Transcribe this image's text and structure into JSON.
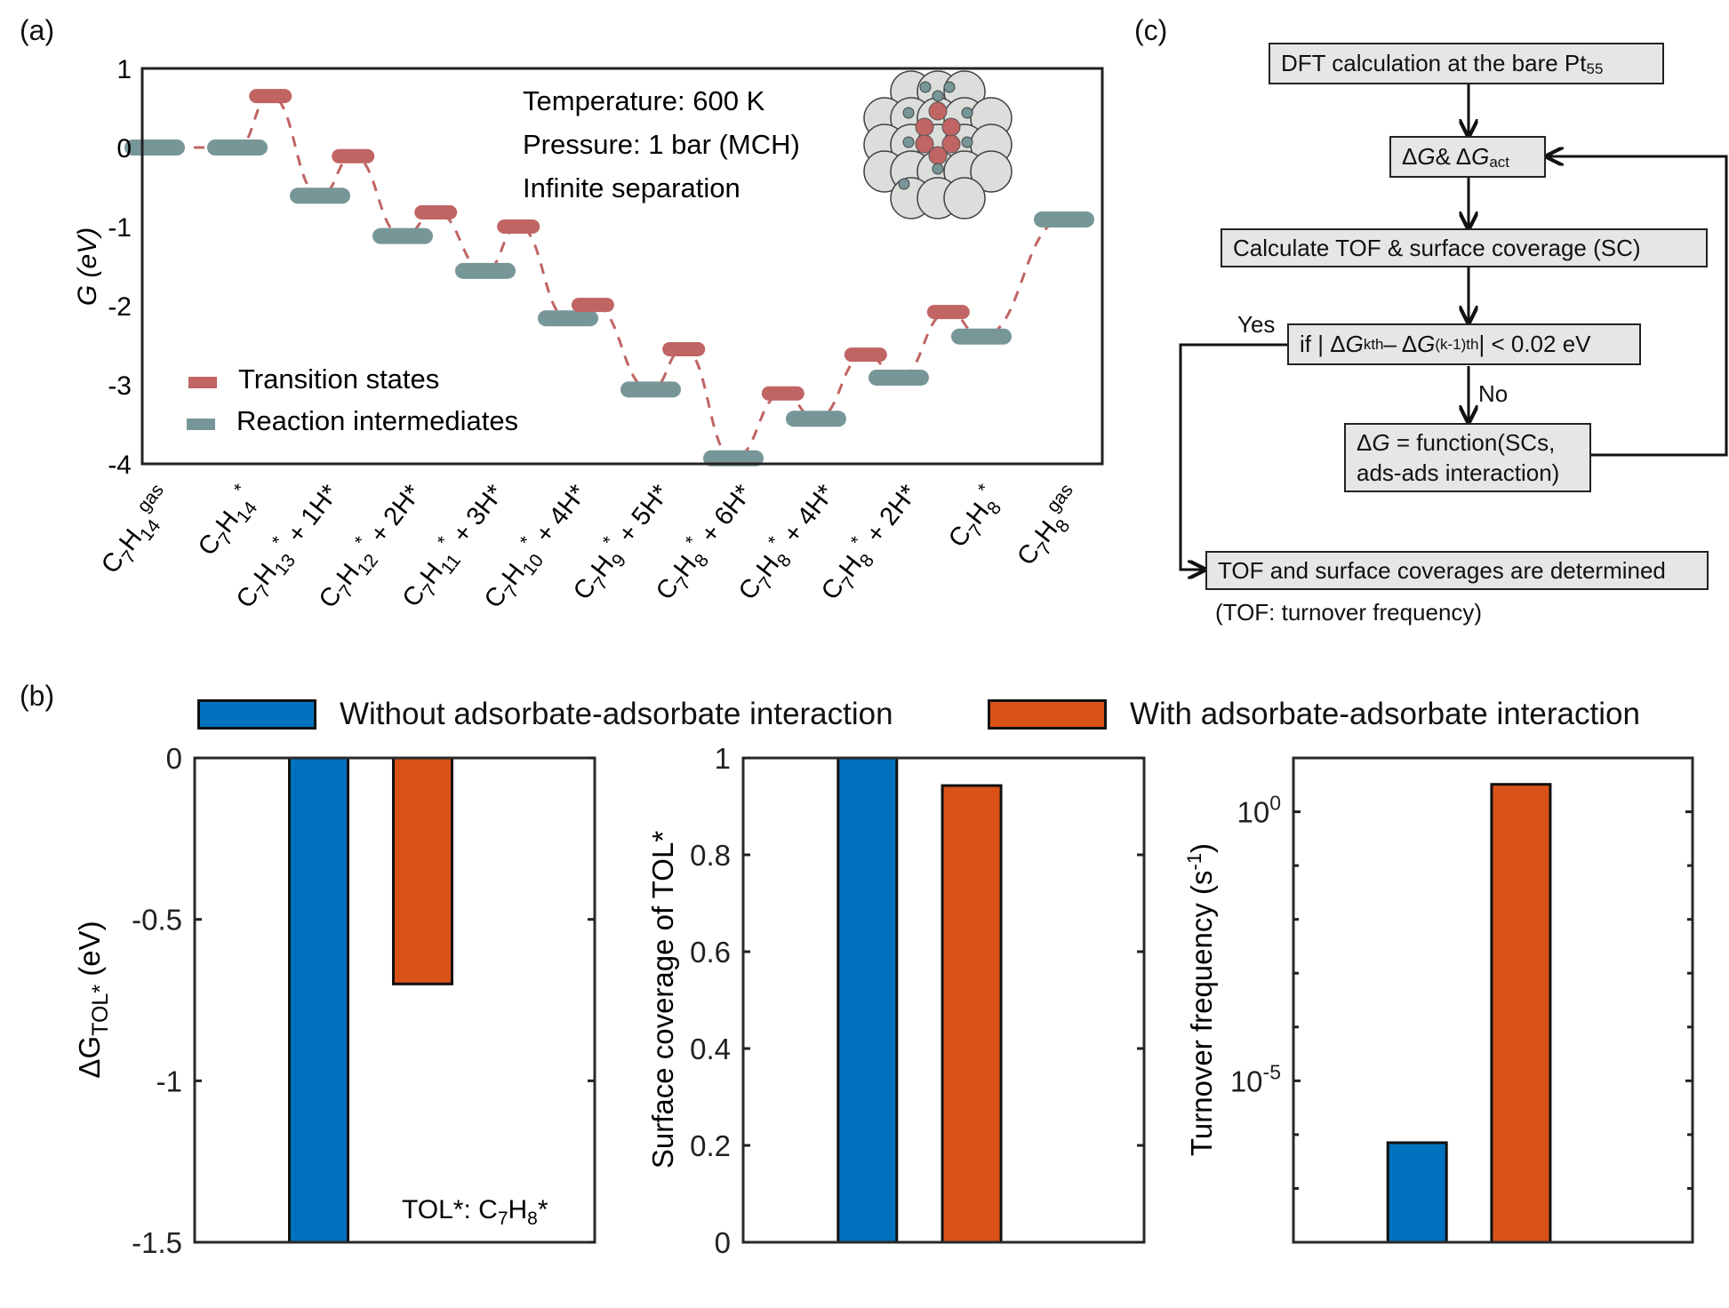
{
  "panels": {
    "a": "(a)",
    "b": "(b)",
    "c": "(c)"
  },
  "chart_data": [
    {
      "id": "energy-diagram",
      "type": "line",
      "title": "",
      "ylabel": "G (eV)",
      "ylim": [
        -4,
        1
      ],
      "yticks": [
        1,
        0,
        -1,
        -2,
        -3,
        -4
      ],
      "annotations": [
        "Temperature: 600 K",
        "Pressure: 1 bar (MCH)",
        "Infinite separation"
      ],
      "legend": {
        "placement": "bottom-left",
        "entries": [
          {
            "name": "Transition states",
            "color": "#c06464"
          },
          {
            "name": "Reaction intermediates",
            "color": "#779698"
          }
        ]
      },
      "inset": "Pt55 cluster with adsorbed toluene and H atoms",
      "intermediates": [
        {
          "label": "C7H14 gas",
          "main": "C",
          "s1": "7",
          "m2": "H",
          "sub": "14",
          "sup": "gas",
          "extra": "",
          "x": 0,
          "G": 0.0
        },
        {
          "label": "C7H14*",
          "main": "C",
          "s1": "7",
          "m2": "H",
          "sub": "14",
          "sup": "*",
          "extra": "",
          "x": 1,
          "G": 0.0
        },
        {
          "label": "C7H13* + 1H*",
          "main": "C",
          "s1": "7",
          "m2": "H",
          "sub": "13",
          "sup": "*",
          "extra": " + 1H*",
          "x": 2,
          "G": -0.61
        },
        {
          "label": "C7H12* + 2H*",
          "main": "C",
          "s1": "7",
          "m2": "H",
          "sub": "12",
          "sup": "*",
          "extra": " + 2H*",
          "x": 3,
          "G": -1.12
        },
        {
          "label": "C7H11* + 3H*",
          "main": "C",
          "s1": "7",
          "m2": "H",
          "sub": "11",
          "sup": "*",
          "extra": " + 3H*",
          "x": 4,
          "G": -1.56
        },
        {
          "label": "C7H10* + 4H*",
          "main": "C",
          "s1": "7",
          "m2": "H",
          "sub": "10",
          "sup": "*",
          "extra": " + 4H*",
          "x": 5,
          "G": -2.16
        },
        {
          "label": "C7H9* + 5H*",
          "main": "C",
          "s1": "7",
          "m2": "H",
          "sub": "9",
          "sup": "*",
          "extra": " + 5H*",
          "x": 6,
          "G": -3.06
        },
        {
          "label": "C7H8* + 6H*",
          "main": "C",
          "s1": "7",
          "m2": "H",
          "sub": "8",
          "sup": "*",
          "extra": " + 6H*",
          "x": 7,
          "G": -3.93
        },
        {
          "label": "C7H8* + 4H*",
          "main": "C",
          "s1": "7",
          "m2": "H",
          "sub": "8",
          "sup": "*",
          "extra": " + 4H*",
          "x": 8,
          "G": -3.43
        },
        {
          "label": "C7H8* + 2H*",
          "main": "C",
          "s1": "7",
          "m2": "H",
          "sub": "8",
          "sup": "*",
          "extra": " + 2H*",
          "x": 9,
          "G": -2.91
        },
        {
          "label": "C7H8*",
          "main": "C",
          "s1": "7",
          "m2": "H",
          "sub": "8",
          "sup": "*",
          "extra": "",
          "x": 10,
          "G": -2.39
        },
        {
          "label": "C7H8 gas",
          "main": "C",
          "s1": "7",
          "m2": "H",
          "sub": "8",
          "sup": "gas",
          "extra": "",
          "x": 11,
          "G": -0.91
        }
      ],
      "transition_states": [
        {
          "x": 1.4,
          "G": 0.65
        },
        {
          "x": 2.4,
          "G": -0.11
        },
        {
          "x": 3.4,
          "G": -0.82
        },
        {
          "x": 4.4,
          "G": -1.0
        },
        {
          "x": 5.3,
          "G": -1.99
        },
        {
          "x": 6.4,
          "G": -2.55
        },
        {
          "x": 7.6,
          "G": -3.11
        },
        {
          "x": 8.6,
          "G": -2.62
        },
        {
          "x": 9.6,
          "G": -2.08
        }
      ]
    },
    {
      "id": "dG-tol",
      "type": "bar",
      "ylabel": "ΔG TOL* (eV)",
      "ylabel_main": "ΔG",
      "ylabel_sub": "TOL*",
      "ylabel_unit": " (eV)",
      "ylim": [
        -1.5,
        0
      ],
      "yticks": [
        0,
        -0.5,
        -1,
        -1.5
      ],
      "ytick_labels": [
        "0",
        "-0.5",
        "-1",
        "-1.5"
      ],
      "annotation": {
        "pre": "TOL*: C",
        "s1": "7",
        "mid": "H",
        "s2": "8",
        "post": "*"
      },
      "series": [
        {
          "name": "Without adsorbate-adsorbate interaction",
          "value": -1.5
        },
        {
          "name": "With adsorbate-adsorbate interaction",
          "value": -0.7
        }
      ]
    },
    {
      "id": "coverage",
      "type": "bar",
      "ylabel": "Surface coverage of TOL*",
      "ylim": [
        0,
        1
      ],
      "yticks": [
        0,
        0.2,
        0.4,
        0.6,
        0.8,
        1
      ],
      "ytick_labels": [
        "0",
        "0.2",
        "0.4",
        "0.6",
        "0.8",
        "1"
      ],
      "series": [
        {
          "name": "Without adsorbate-adsorbate interaction",
          "value": 1.0
        },
        {
          "name": "With adsorbate-adsorbate interaction",
          "value": 0.943
        }
      ]
    },
    {
      "id": "tof",
      "type": "bar",
      "scale": "log",
      "ylabel": "Turnover frequency (s-1)",
      "ylim_log10": [
        -8,
        1
      ],
      "major_ticks_log10": [
        0,
        -5
      ],
      "minor_ticks_log10": [
        -7,
        -6,
        -4,
        -3,
        -2,
        -1
      ],
      "series": [
        {
          "name": "Without adsorbate-adsorbate interaction",
          "value_log10": -6.15
        },
        {
          "name": "With adsorbate-adsorbate interaction",
          "value_log10": 0.51
        }
      ]
    }
  ],
  "legend_b": [
    {
      "label": "Without adsorbate-adsorbate interaction",
      "color": "#0072bd"
    },
    {
      "label": "With adsorbate-adsorbate interaction",
      "color": "#d95319"
    }
  ],
  "flowchart": {
    "box1": {
      "text": "DFT calculation at the bare Pt",
      "sub": "55"
    },
    "box2": {
      "d1": "Δ",
      "g1": "G",
      "amp": " & Δ",
      "g2": "G",
      "sub": "act"
    },
    "box3": "Calculate TOF & surface coverage (SC)",
    "box4": {
      "pre": "if | Δ",
      "g1": "G",
      "sup1": " kth",
      "mid": " – Δ",
      "g2": "G",
      "sup2": "(k-1)th",
      "post": "| < 0.02 eV"
    },
    "box5": {
      "l1pre": "Δ",
      "l1g": "G",
      "l1post": " = function(SCs,",
      "l2": "ads-ads interaction)"
    },
    "box6": "TOF and surface coverages are determined",
    "yes": "Yes",
    "no": "No",
    "note": "(TOF: turnover frequency)"
  }
}
